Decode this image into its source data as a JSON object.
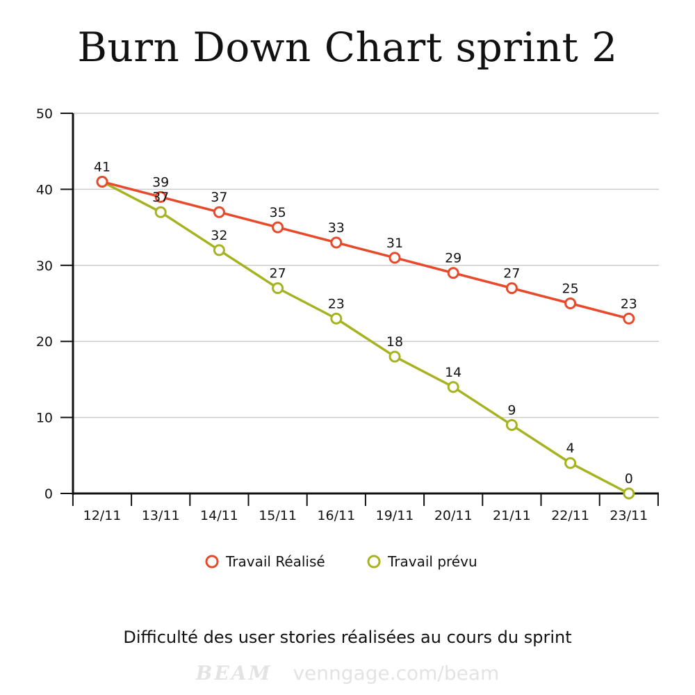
{
  "colors": {
    "realise": "#e8492b",
    "prevu": "#a6b321",
    "grid": "#cccccc",
    "axis": "#111111"
  },
  "footer": {
    "brand": "BEAM",
    "url": "venngage.com/beam"
  },
  "chart_data": {
    "type": "line",
    "title": "Burn Down Chart sprint 2",
    "caption": "Difficulté des user stories réalisées au cours du sprint",
    "categories": [
      "12/11",
      "13/11",
      "14/11",
      "15/11",
      "16/11",
      "19/11",
      "20/11",
      "21/11",
      "22/11",
      "23/11"
    ],
    "series": [
      {
        "name": "Travail Réalisé",
        "values": [
          41,
          39,
          37,
          35,
          33,
          31,
          29,
          27,
          25,
          23
        ],
        "labels_from": 1
      },
      {
        "name": "Travail prévu",
        "values": [
          41,
          37,
          32,
          27,
          23,
          18,
          14,
          9,
          4,
          0
        ],
        "labels_from": 0
      }
    ],
    "ylim": [
      0,
      50
    ],
    "yticks": [
      0,
      10,
      20,
      30,
      40,
      50
    ],
    "grid": true,
    "legend": "bottom"
  }
}
